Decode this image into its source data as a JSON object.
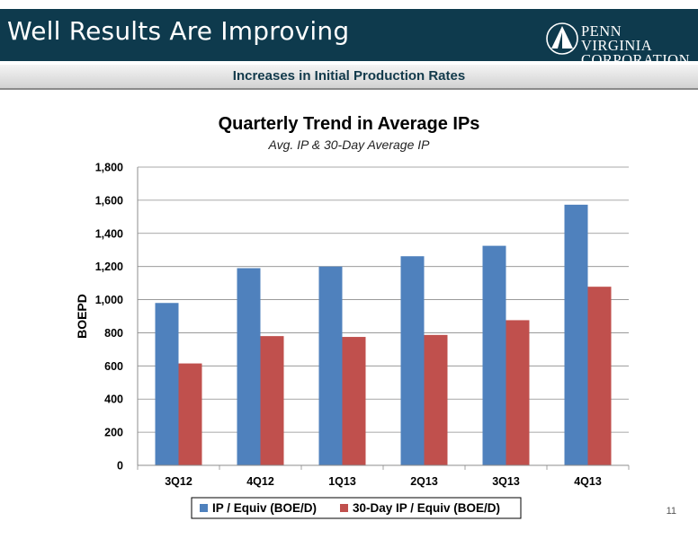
{
  "header": {
    "title": "Well Results Are Improving"
  },
  "logo": {
    "line1": "PENN VIRGINIA",
    "line2": "CORPORATION"
  },
  "subheader": {
    "text": "Increases in Initial Production Rates"
  },
  "page": {
    "number": "11"
  },
  "colors": {
    "header_bg": "#0e3a4d",
    "series1": "#4f81bd",
    "series2": "#c0504d"
  },
  "chart_data": {
    "type": "bar",
    "title": "Quarterly Trend in Average IPs",
    "subtitle": "Avg. IP & 30-Day Average IP",
    "ylabel": "BOEPD",
    "xlabel": "",
    "categories": [
      "3Q12",
      "4Q12",
      "1Q13",
      "2Q13",
      "3Q13",
      "4Q13"
    ],
    "series": [
      {
        "name": "IP / Equiv (BOE/D)",
        "values": [
          980,
          1190,
          1200,
          1262,
          1325,
          1573
        ],
        "color": "#4f81bd"
      },
      {
        "name": "30-Day IP / Equiv (BOE/D)",
        "values": [
          615,
          780,
          775,
          787,
          876,
          1078
        ],
        "color": "#c0504d"
      }
    ],
    "ylim": [
      0,
      1800
    ],
    "yticks": [
      "0",
      "200",
      "400",
      "600",
      "800",
      "1,000",
      "1,200",
      "1,400",
      "1,600",
      "1,800"
    ],
    "grid": true,
    "legend": "bottom"
  }
}
